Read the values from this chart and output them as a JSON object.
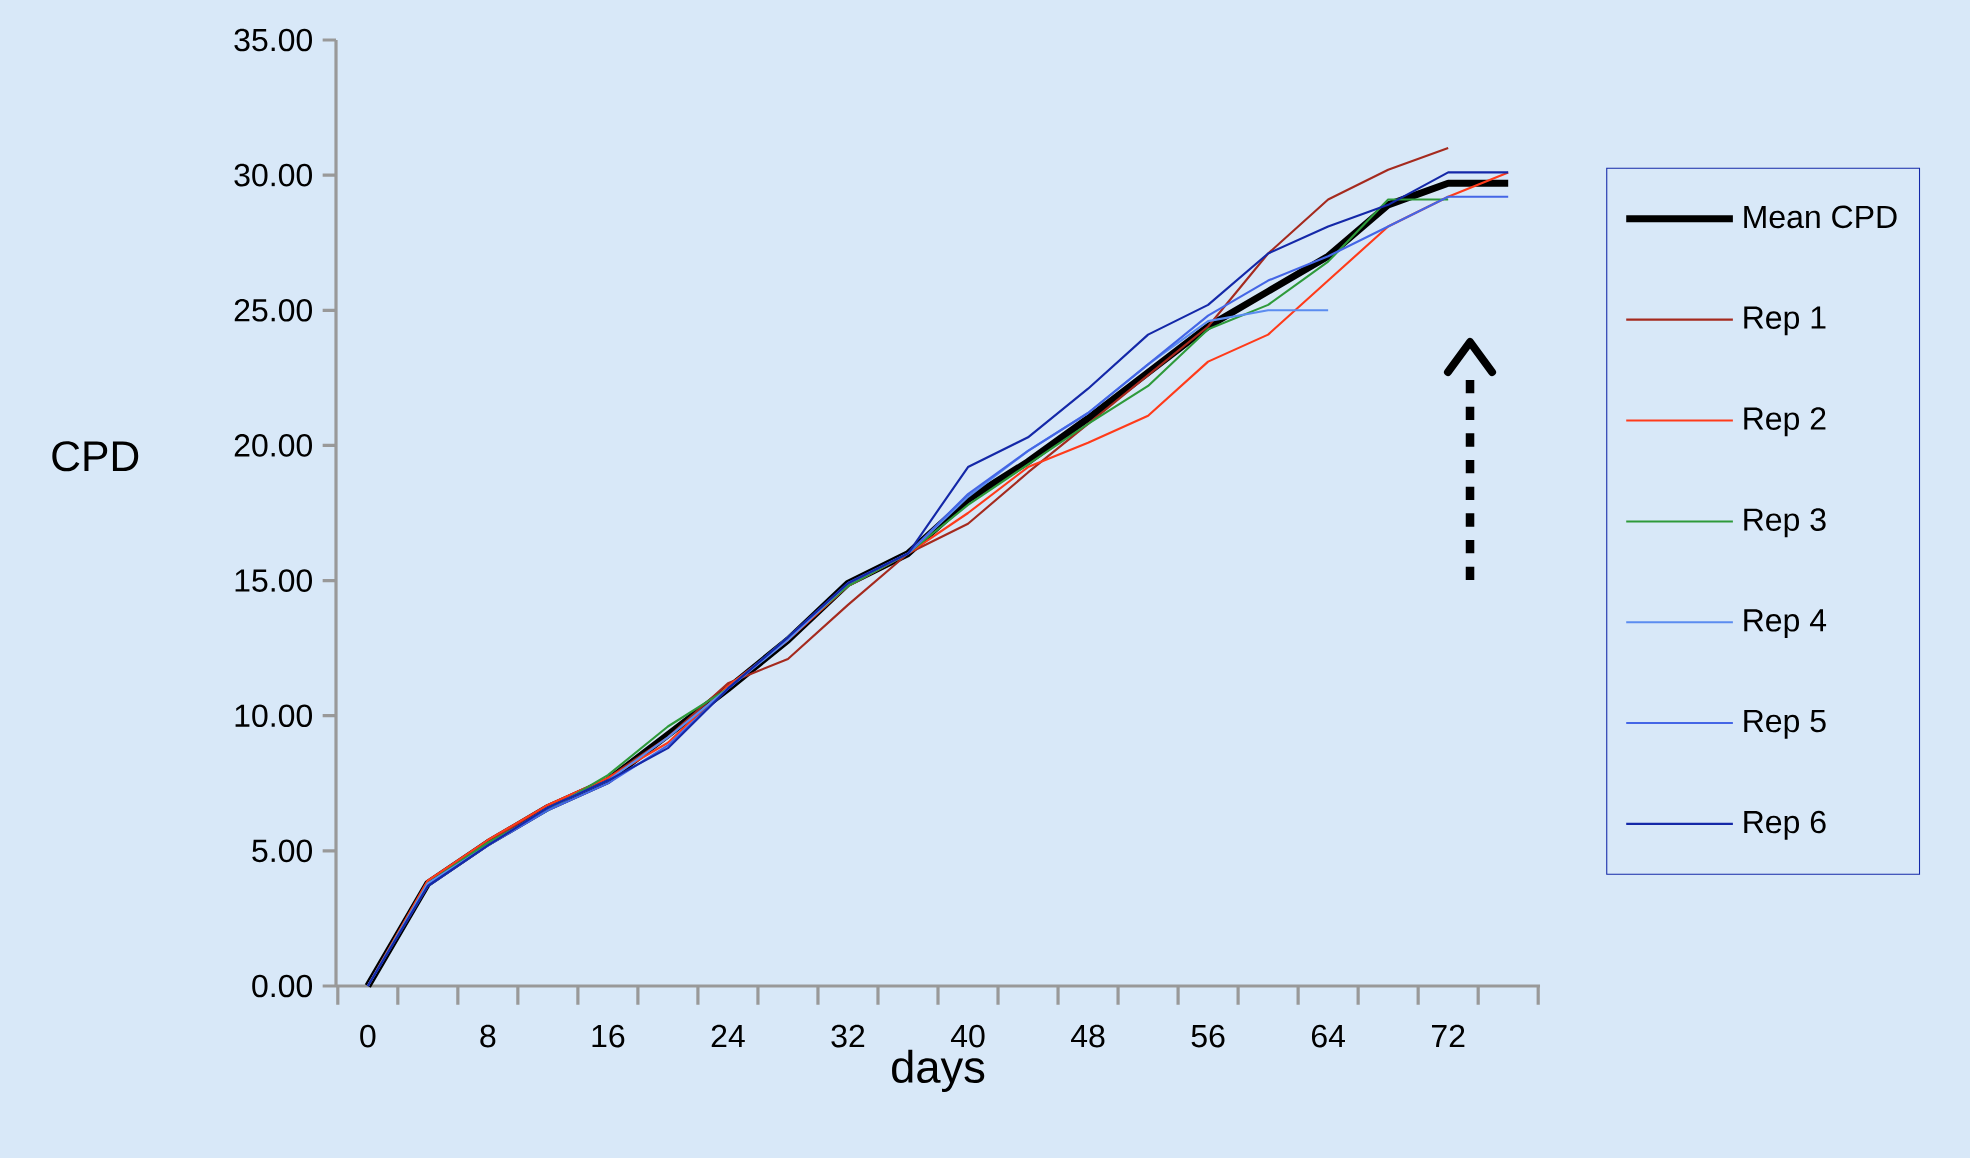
{
  "chart_data": {
    "type": "line",
    "xlabel": "days",
    "ylabel": "CPD",
    "categories": [
      "0",
      null,
      "8",
      null,
      "16",
      null,
      "24",
      null,
      "32",
      null,
      "40",
      null,
      "48",
      null,
      "56",
      null,
      "64",
      null,
      "72",
      null
    ],
    "ylim": [
      0,
      35
    ],
    "yticks": [
      {
        "value": 0,
        "label": "0.00"
      },
      {
        "value": 5,
        "label": "5.00"
      },
      {
        "value": 10,
        "label": "10.00"
      },
      {
        "value": 15,
        "label": "15.00"
      },
      {
        "value": 20,
        "label": "20.00"
      },
      {
        "value": 25,
        "label": "25.00"
      },
      {
        "value": 30,
        "label": "30.00"
      },
      {
        "value": 35,
        "label": "35.00"
      }
    ],
    "grid": false,
    "legend": "right",
    "marker": "none",
    "series": [
      {
        "name": "Mean CPD",
        "color": "#000000",
        "values": [
          0,
          3.8,
          5.3,
          6.6,
          7.6,
          9.3,
          11.0,
          12.8,
          14.9,
          16.0,
          18.0,
          19.4,
          21.0,
          22.7,
          24.4,
          25.7,
          27.0,
          28.9,
          29.7,
          29.7
        ]
      },
      {
        "name": "Rep 1",
        "color": "#a52a1e",
        "values": [
          0,
          3.9,
          5.3,
          6.7,
          7.7,
          9.2,
          11.2,
          12.1,
          14.1,
          16.0,
          17.1,
          19.0,
          20.8,
          22.6,
          24.4,
          27.1,
          29.1,
          30.2,
          31.0,
          null
        ]
      },
      {
        "name": "Rep 2",
        "color": "#ff3b1a",
        "values": [
          0,
          3.9,
          5.4,
          6.7,
          7.7,
          9.0,
          11.1,
          12.8,
          14.8,
          16.0,
          17.5,
          19.2,
          20.1,
          21.1,
          23.1,
          24.1,
          26.1,
          28.1,
          29.2,
          30.1
        ]
      },
      {
        "name": "Rep 3",
        "color": "#2e9a3a",
        "values": [
          0,
          3.8,
          5.3,
          6.5,
          7.8,
          9.6,
          11.0,
          12.9,
          14.8,
          16.0,
          17.8,
          19.3,
          20.8,
          22.2,
          24.3,
          25.2,
          26.8,
          29.1,
          29.1,
          null
        ]
      },
      {
        "name": "Rep 4",
        "color": "#5b8cf0",
        "values": [
          0,
          3.8,
          5.2,
          6.6,
          7.6,
          9.2,
          11.0,
          12.8,
          14.9,
          16.0,
          18.1,
          19.8,
          21.2,
          23.0,
          24.6,
          25.0,
          25.0,
          null,
          null,
          null
        ]
      },
      {
        "name": "Rep 5",
        "color": "#4466e6",
        "values": [
          0,
          3.7,
          5.2,
          6.5,
          7.5,
          8.9,
          11.0,
          12.9,
          14.9,
          16.0,
          18.2,
          19.8,
          21.2,
          23.0,
          24.8,
          26.1,
          27.0,
          28.1,
          29.2,
          29.2
        ]
      },
      {
        "name": "Rep 6",
        "color": "#1428a8",
        "values": [
          0,
          3.7,
          5.2,
          6.6,
          7.6,
          8.8,
          11.0,
          12.9,
          14.9,
          16.0,
          19.2,
          20.3,
          22.1,
          24.1,
          25.2,
          27.1,
          28.1,
          28.9,
          30.1,
          30.1
        ]
      }
    ]
  }
}
